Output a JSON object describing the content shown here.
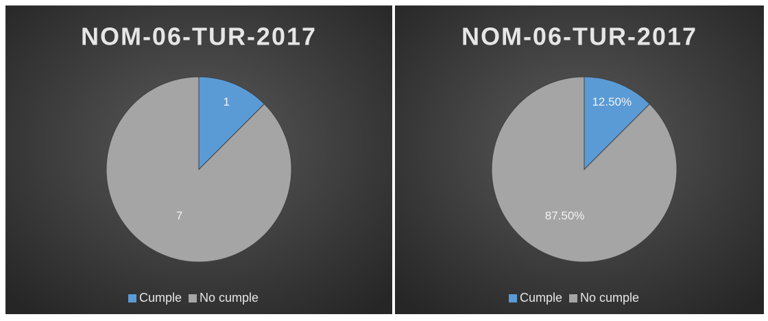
{
  "chart_data": [
    {
      "type": "pie",
      "title": "NOM-06-TUR-2017",
      "categories": [
        "Cumple",
        "No cumple"
      ],
      "values": [
        1,
        7
      ],
      "colors": [
        "#5b9bd5",
        "#a5a5a5"
      ],
      "legend": "bottom"
    },
    {
      "type": "pie",
      "title": "NOM-06-TUR-2017",
      "categories": [
        "Cumple",
        "No cumple"
      ],
      "values": [
        12.5,
        87.5
      ],
      "value_labels": [
        "12.50%",
        "87.50%"
      ],
      "colors": [
        "#5b9bd5",
        "#a5a5a5"
      ],
      "legend": "bottom"
    }
  ]
}
